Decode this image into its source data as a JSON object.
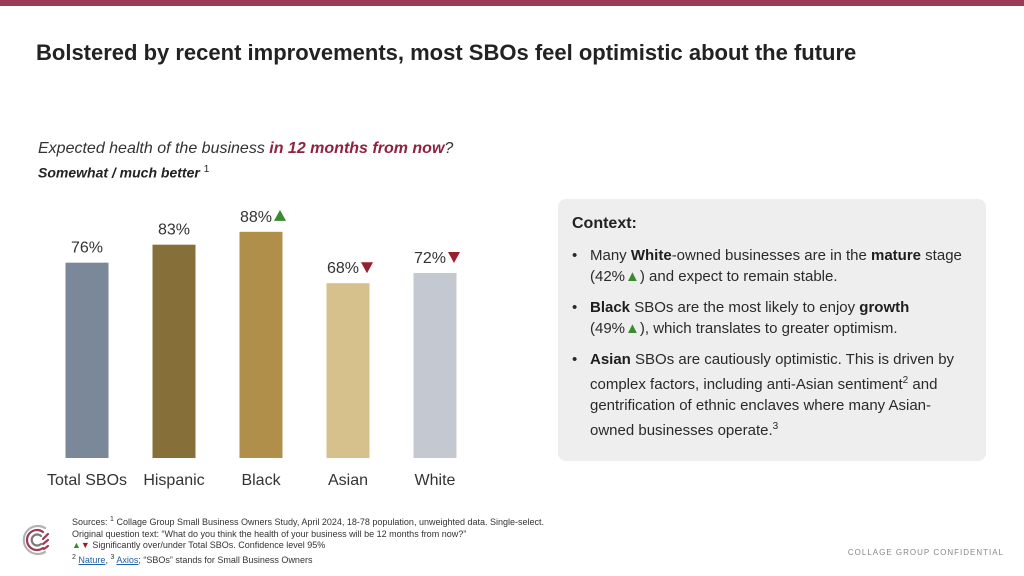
{
  "title": "Bolstered by recent improvements, most SBOs feel optimistic about the future",
  "question": {
    "prefix": "Expected health of the business ",
    "highlight": "in 12 months from now",
    "suffix": "?"
  },
  "subquestion": {
    "text": "Somewhat / much better ",
    "sup": "1"
  },
  "colors": {
    "accent": "#9b3b55",
    "highlight": "#8e2340",
    "up": "#3a8a2e",
    "down": "#9a1f2e"
  },
  "chart_data": {
    "type": "bar",
    "categories": [
      "Total SBOs",
      "Hispanic",
      "Black",
      "Asian",
      "White"
    ],
    "values": [
      76,
      83,
      88,
      68,
      72
    ],
    "data_labels": [
      "76%",
      "83%",
      "88%",
      "68%",
      "72%"
    ],
    "markers": [
      "",
      "",
      "up",
      "down",
      "down"
    ],
    "bar_colors": [
      "#7b8899",
      "#876f3a",
      "#b08f4a",
      "#d6c08b",
      "#c4c9d1"
    ],
    "ylim": [
      0,
      100
    ],
    "grid": false
  },
  "context": {
    "heading": "Context:",
    "items": [
      {
        "parts": [
          [
            "t",
            "Many "
          ],
          [
            "b",
            "White"
          ],
          [
            "t",
            "-owned businesses are in the "
          ],
          [
            "b",
            "mature"
          ],
          [
            "t",
            " stage (42%"
          ],
          [
            "up",
            "▲"
          ],
          [
            "t",
            ") and expect to remain stable."
          ]
        ]
      },
      {
        "parts": [
          [
            "b",
            "Black"
          ],
          [
            "t",
            " SBOs are the most likely to enjoy "
          ],
          [
            "b",
            "growth"
          ],
          [
            "t",
            " (49%"
          ],
          [
            "up",
            "▲"
          ],
          [
            "t",
            "), which translates to greater optimism."
          ]
        ]
      },
      {
        "parts": [
          [
            "b",
            "Asian"
          ],
          [
            "t",
            " SBOs are cautiously optimistic. This is driven by complex factors, including anti-Asian sentiment"
          ],
          [
            "sup",
            "2"
          ],
          [
            "t",
            " and gentrification of ethnic enclaves where many Asian-owned businesses operate."
          ],
          [
            "sup",
            "3"
          ]
        ]
      }
    ]
  },
  "sources": {
    "line1_label": "Sources: ",
    "line1_sup": "1",
    "line1_text": " Collage Group Small Business Owners Study, April 2024, 18-78 population, unweighted data. Single-select.",
    "line2": "Original question text: “What do you think the health of your business will be 12 months from now?”",
    "line3_up": "▲",
    "line3_down": "▼",
    "line3_text": " Significantly over/under Total SBOs. Confidence level 95%",
    "line4_sup2": "2",
    "line4_link1": "Nature",
    "line4_sep": ", ",
    "line4_sup3": "3",
    "line4_link2": "Axios",
    "line4_text": "; “SBOs” stands for Small Business Owners"
  },
  "confidential": "COLLAGE GROUP CONFIDENTIAL",
  "logo_icon": "collage-group-logo-icon"
}
